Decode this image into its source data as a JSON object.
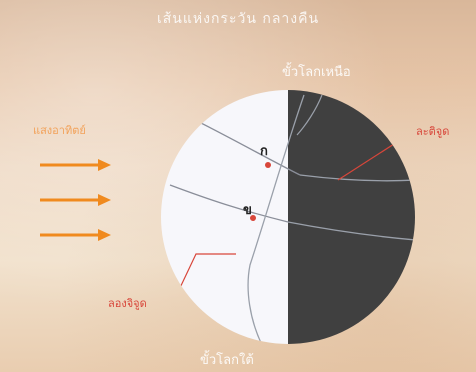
{
  "title": "เส้นแห่งกระวัน กลางคืน",
  "labels": {
    "north_pole": "ขั้วโลกเหนือ",
    "south_pole": "ขั้วโลกใต้",
    "sunlight": "แสงอาทิตย์",
    "longitude": "ละติจูด",
    "latitude": "ลองจิจูด",
    "point_a": "ก",
    "point_b": "ข"
  },
  "colors": {
    "sun_arrow": "#f08a1e",
    "day_side": "#f7f7fb",
    "night_side": "#404040",
    "leader_line": "#d8463a",
    "grid_line_day": "#8a8e99",
    "grid_line_night": "#9aa0aa"
  },
  "icons": {
    "sun_rays": "arrow-right-icon",
    "globe": "globe-icon"
  }
}
